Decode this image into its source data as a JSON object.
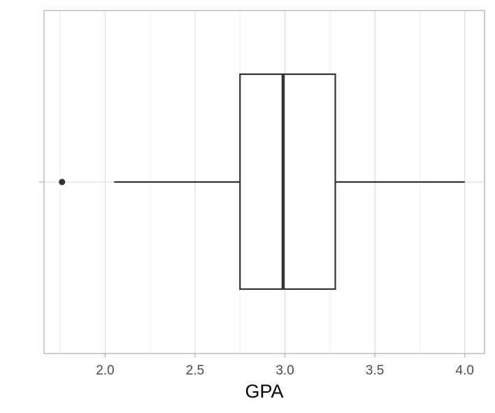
{
  "chart_data": {
    "type": "boxplot",
    "orientation": "horizontal",
    "xlabel": "GPA",
    "ylabel": "",
    "xlim": [
      1.66,
      4.11
    ],
    "x_ticks": [
      2.0,
      2.5,
      3.0,
      3.5,
      4.0
    ],
    "x_tick_labels": [
      "2.0",
      "2.5",
      "3.0",
      "3.5",
      "4.0"
    ],
    "x_minor_ticks": [
      1.75,
      2.25,
      2.75,
      3.25,
      3.75
    ],
    "grid": true,
    "box": {
      "whisker_low": 2.05,
      "q1": 2.75,
      "median": 2.99,
      "q3": 3.28,
      "whisker_high": 4.0,
      "outliers": [
        1.76
      ]
    },
    "colors": {
      "box_stroke": "#333333",
      "grid": "#dedede",
      "panel_border": "#b3b3b3",
      "tick_label": "#4d4d4d"
    }
  }
}
